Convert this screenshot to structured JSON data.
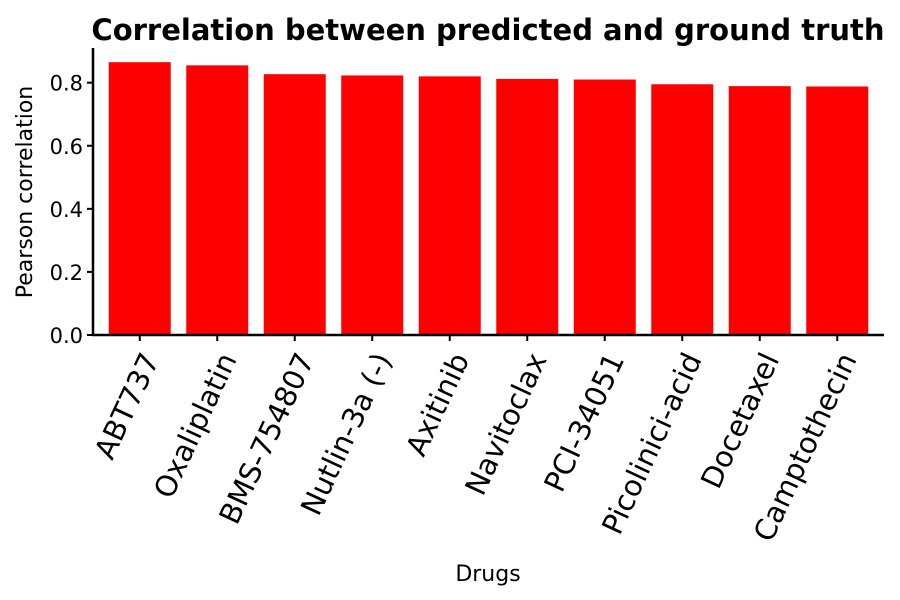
{
  "chart_data": {
    "type": "bar",
    "title": "Correlation between predicted and ground truth",
    "xlabel": "Drugs",
    "ylabel": "Pearson correlation",
    "categories": [
      "ABT737",
      "Oxaliplatin",
      "BMS-754807",
      "Nutlin-3a (-)",
      "Axitinib",
      "Navitoclax",
      "PCI-34051",
      "Picolinici-acid",
      "Docetaxel",
      "Camptothecin"
    ],
    "values": [
      0.865,
      0.855,
      0.827,
      0.823,
      0.82,
      0.812,
      0.81,
      0.795,
      0.789,
      0.788
    ],
    "yticks": [
      "0.0",
      "0.2",
      "0.4",
      "0.6",
      "0.8"
    ],
    "ylim": [
      0,
      0.91
    ],
    "bar_color": "#ff0000",
    "grid": false,
    "legend": "none"
  }
}
